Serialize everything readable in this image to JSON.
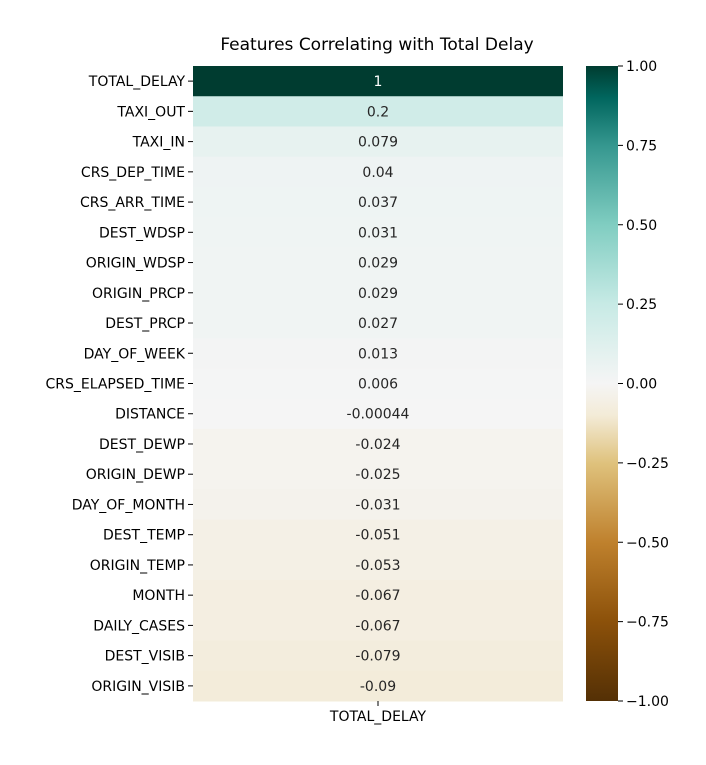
{
  "chart_data": {
    "type": "heatmap",
    "title": "Features Correlating with Total Delay",
    "column": "TOTAL_DELAY",
    "rows": [
      {
        "label": "TOTAL_DELAY",
        "value": 1,
        "display": "1"
      },
      {
        "label": "TAXI_OUT",
        "value": 0.2,
        "display": "0.2"
      },
      {
        "label": "TAXI_IN",
        "value": 0.079,
        "display": "0.079"
      },
      {
        "label": "CRS_DEP_TIME",
        "value": 0.04,
        "display": "0.04"
      },
      {
        "label": "CRS_ARR_TIME",
        "value": 0.037,
        "display": "0.037"
      },
      {
        "label": "DEST_WDSP",
        "value": 0.031,
        "display": "0.031"
      },
      {
        "label": "ORIGIN_WDSP",
        "value": 0.029,
        "display": "0.029"
      },
      {
        "label": "ORIGIN_PRCP",
        "value": 0.029,
        "display": "0.029"
      },
      {
        "label": "DEST_PRCP",
        "value": 0.027,
        "display": "0.027"
      },
      {
        "label": "DAY_OF_WEEK",
        "value": 0.013,
        "display": "0.013"
      },
      {
        "label": "CRS_ELAPSED_TIME",
        "value": 0.006,
        "display": "0.006"
      },
      {
        "label": "DISTANCE",
        "value": -0.00044,
        "display": "-0.00044"
      },
      {
        "label": "DEST_DEWP",
        "value": -0.024,
        "display": "-0.024"
      },
      {
        "label": "ORIGIN_DEWP",
        "value": -0.025,
        "display": "-0.025"
      },
      {
        "label": "DAY_OF_MONTH",
        "value": -0.031,
        "display": "-0.031"
      },
      {
        "label": "DEST_TEMP",
        "value": -0.051,
        "display": "-0.051"
      },
      {
        "label": "ORIGIN_TEMP",
        "value": -0.053,
        "display": "-0.053"
      },
      {
        "label": "MONTH",
        "value": -0.067,
        "display": "-0.067"
      },
      {
        "label": "DAILY_CASES",
        "value": -0.067,
        "display": "-0.067"
      },
      {
        "label": "DEST_VISIB",
        "value": -0.079,
        "display": "-0.079"
      },
      {
        "label": "ORIGIN_VISIB",
        "value": -0.09,
        "display": "-0.09"
      }
    ],
    "colorbar": {
      "range": [
        -1,
        1
      ],
      "ticks": [
        {
          "value": 1,
          "label": "1.00"
        },
        {
          "value": 0.75,
          "label": "0.75"
        },
        {
          "value": 0.5,
          "label": "0.50"
        },
        {
          "value": 0.25,
          "label": "0.25"
        },
        {
          "value": 0,
          "label": "0.00"
        },
        {
          "value": -0.25,
          "label": "−0.25"
        },
        {
          "value": -0.5,
          "label": "−0.50"
        },
        {
          "value": -0.75,
          "label": "−0.75"
        },
        {
          "value": -1,
          "label": "−1.00"
        }
      ],
      "colormap": "BrBG",
      "stops": [
        {
          "value": -1,
          "color": "#543005"
        },
        {
          "value": -0.75,
          "color": "#8c510a"
        },
        {
          "value": -0.5,
          "color": "#bf812d"
        },
        {
          "value": -0.25,
          "color": "#dfc27d"
        },
        {
          "value": -0.1,
          "color": "#f3ebd7"
        },
        {
          "value": 0,
          "color": "#f5f5f5"
        },
        {
          "value": 0.1,
          "color": "#e3f1ef"
        },
        {
          "value": 0.25,
          "color": "#c7eae5"
        },
        {
          "value": 0.5,
          "color": "#80cdc1"
        },
        {
          "value": 0.75,
          "color": "#35978f"
        },
        {
          "value": 0.9,
          "color": "#01665e"
        },
        {
          "value": 1,
          "color": "#003c30"
        }
      ]
    }
  }
}
